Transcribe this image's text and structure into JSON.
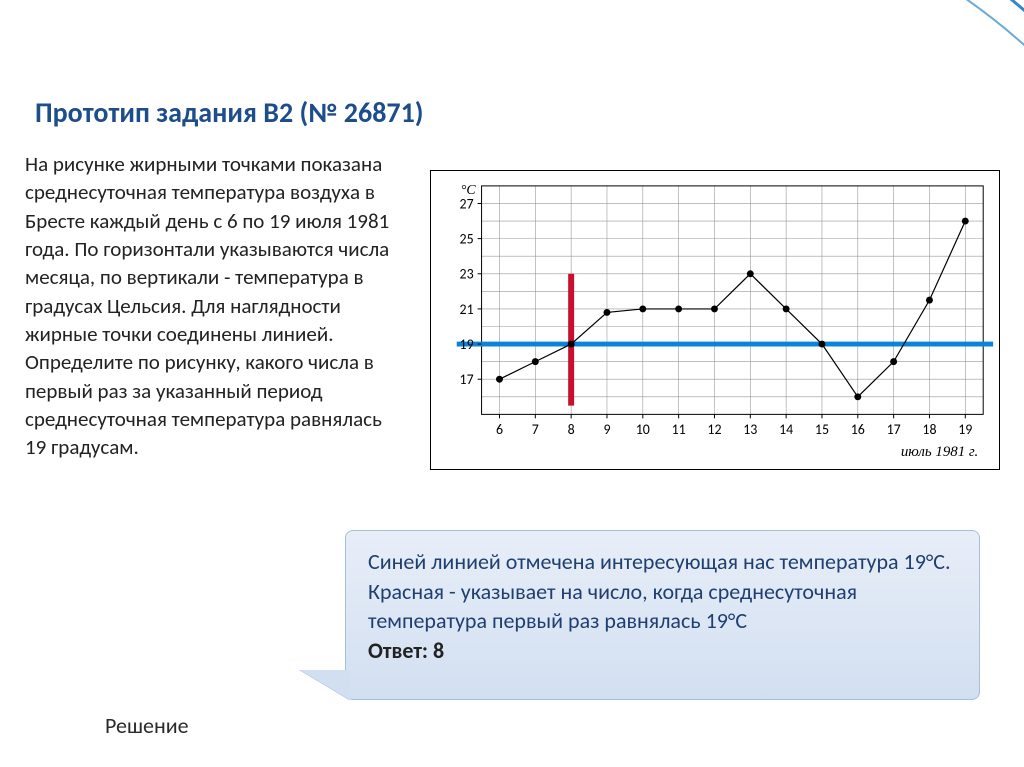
{
  "title": "Прототип задания B2 (№ 26871)",
  "problem": "На рисунке жирными точками показана среднесуточная температура воздуха в Бресте каждый день с 6 по 19 июля 1981 года. По горизонтали указываются числа месяца, по вертикали - температура в градусах Цельсия. Для наглядности жирные точки соединены линией. Определите по рисунку, какого числа в первый раз за указанный период среднесуточная температура равнялась 19 градусам.",
  "callout_text": "Синей линией отмечена интересующая нас температура 19°С. Красная - указывает на число, когда среднесуточная температура первый раз равнялась 19°С",
  "answer_label": "Ответ: ",
  "answer_value": "8",
  "reshenie": "Решение",
  "chart": {
    "type": "line",
    "x_days": [
      6,
      7,
      8,
      9,
      10,
      11,
      12,
      13,
      14,
      15,
      16,
      17,
      18,
      19
    ],
    "y_temp": [
      17,
      18,
      19,
      20.8,
      21,
      21,
      21,
      23,
      21,
      19,
      16,
      18,
      21.5,
      26
    ],
    "x_ticks": [
      6,
      7,
      8,
      9,
      10,
      11,
      12,
      13,
      14,
      15,
      16,
      17,
      18,
      19
    ],
    "y_ticks": [
      17,
      19,
      21,
      23,
      25,
      27
    ],
    "y_unit": "°C",
    "x_unit_label": "июль 1981 г.",
    "xlim": [
      5.5,
      19.5
    ],
    "ylim": [
      15,
      28
    ],
    "grid_color": "#999999",
    "line_color": "#000000",
    "point_color": "#000000",
    "line_width": 1.2,
    "point_radius": 3.5,
    "background": "#ffffff",
    "hl_blue": {
      "y": 19,
      "color": "#0a84d8",
      "width": 5
    },
    "hl_red": {
      "x": 8,
      "color": "#c8102e",
      "width": 6
    },
    "axis_font_size": 14,
    "caption_font_size": 15
  },
  "arcs": {
    "color1": "#3a84c8",
    "color2": "#6aaad8"
  }
}
